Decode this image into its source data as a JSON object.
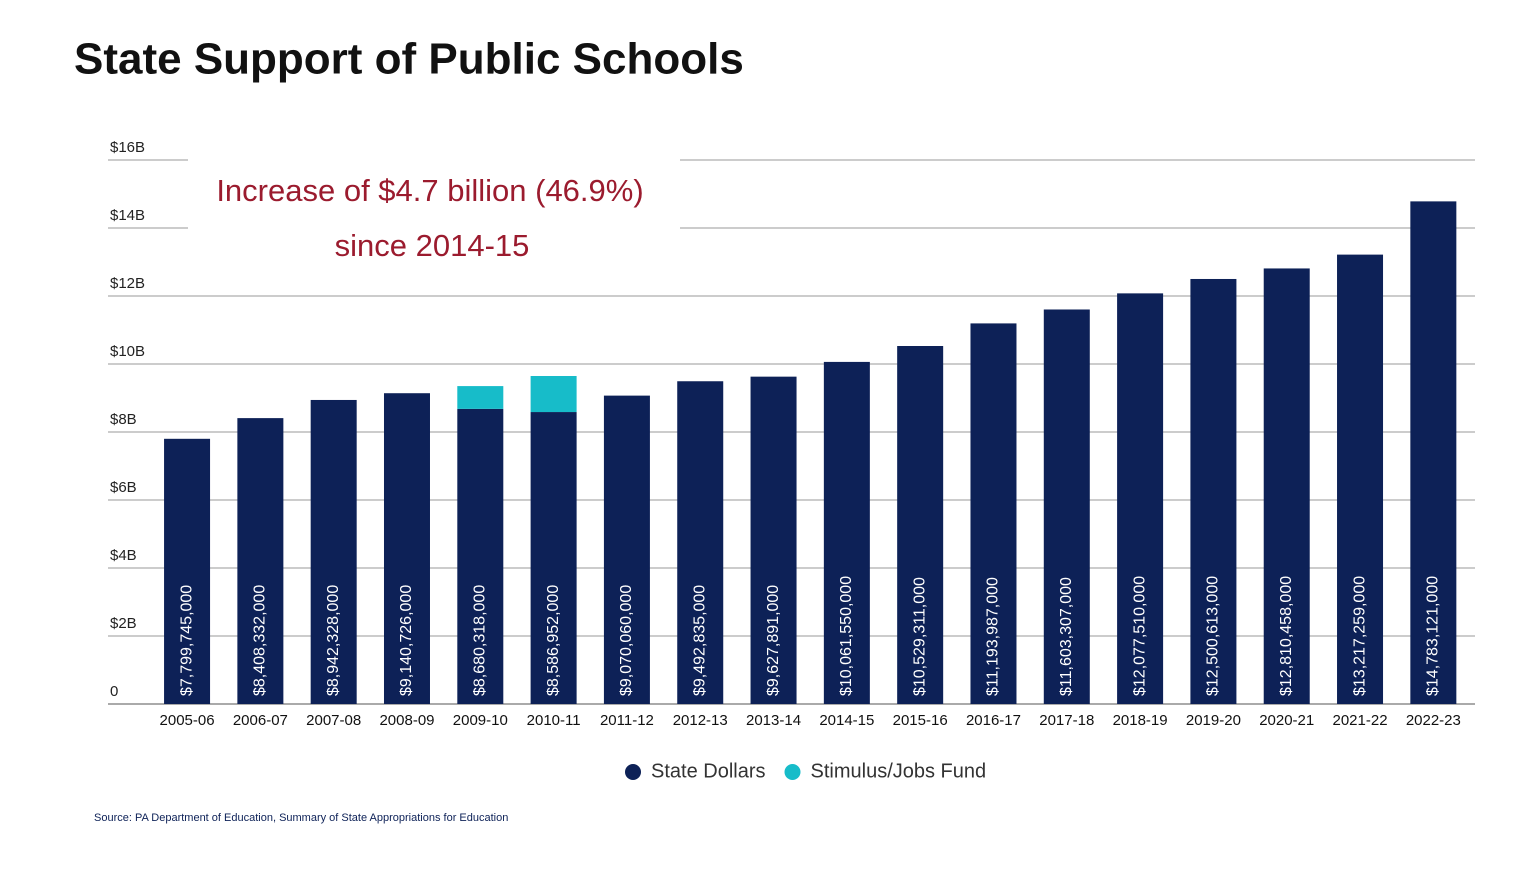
{
  "chart_data": {
    "type": "stacked-bar",
    "title": "State Support of Public Schools",
    "annotation": [
      "Increase of $4.7 billion (46.9%)",
      "since 2014-15"
    ],
    "source": "Source: PA Department of Education, Summary of State Appropriations for Education",
    "categories": [
      "2005-06",
      "2006-07",
      "2007-08",
      "2008-09",
      "2009-10",
      "2010-11",
      "2011-12",
      "2012-13",
      "2013-14",
      "2014-15",
      "2015-16",
      "2016-17",
      "2017-18",
      "2018-19",
      "2019-20",
      "2020-21",
      "2021-22",
      "2022-23"
    ],
    "series": [
      {
        "name": "State Dollars",
        "color": "#0d2157",
        "values": [
          7799745000,
          8408332000,
          8942328000,
          9140726000,
          8680318000,
          8586952000,
          9070060000,
          9492835000,
          9627891000,
          10061550000,
          10529311000,
          11193987000,
          11603307000,
          12077510000,
          12500613000,
          12810458000,
          13217259000,
          14783121000
        ],
        "value_labels": [
          "$7,799,745,000",
          "$8,408,332,000",
          "$8,942,328,000",
          "$9,140,726,000",
          "$8,680,318,000",
          "$8,586,952,000",
          "$9,070,060,000",
          "$9,492,835,000",
          "$9,627,891,000",
          "$10,061,550,000",
          "$10,529,311,000",
          "$11,193,987,000",
          "$11,603,307,000",
          "$12,077,510,000",
          "$12,500,613,000",
          "$12,810,458,000",
          "$13,217,259,000",
          "$14,783,121,000"
        ]
      },
      {
        "name": "Stimulus/Jobs Fund",
        "color": "#17bcc9",
        "values": [
          null,
          null,
          null,
          null,
          670000000,
          1060000000,
          null,
          null,
          null,
          null,
          null,
          null,
          null,
          null,
          null,
          null,
          null,
          null
        ]
      }
    ],
    "ylim": [
      0,
      16000000000
    ],
    "yticks": [
      0,
      {
        "value": 2000000000,
        "label": "$2B"
      },
      {
        "value": 4000000000,
        "label": "$4B"
      },
      {
        "value": 6000000000,
        "label": "$6B"
      },
      {
        "value": 8000000000,
        "label": "$8B"
      },
      {
        "value": 10000000000,
        "label": "$10B"
      },
      {
        "value": 12000000000,
        "label": "$12B"
      },
      {
        "value": 14000000000,
        "label": "$14B"
      },
      {
        "value": 16000000000,
        "label": "$16B"
      }
    ],
    "grid": true
  }
}
